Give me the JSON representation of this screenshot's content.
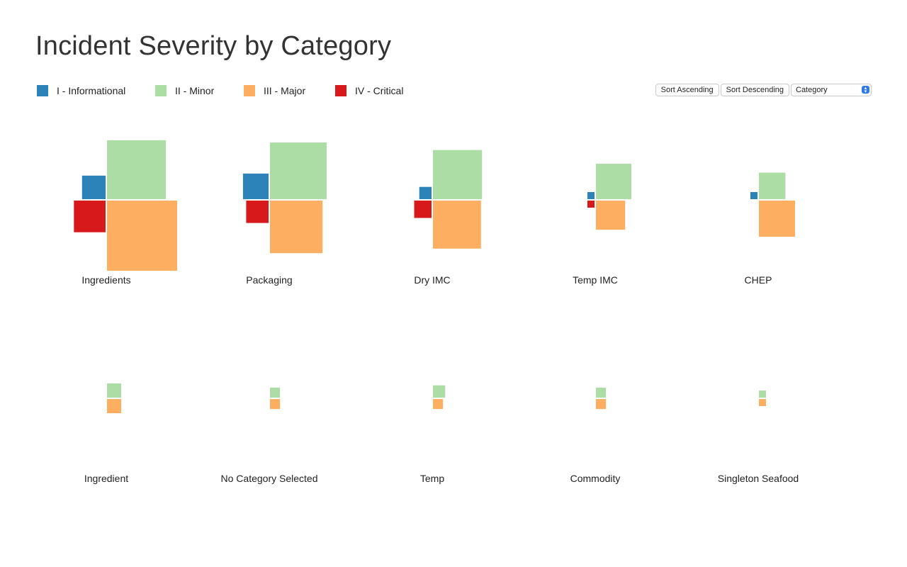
{
  "chart_data": {
    "type": "bar",
    "title": "Incident Severity by Category",
    "series": [
      {
        "name": "I - Informational",
        "color": "#2b83ba"
      },
      {
        "name": "II - Minor",
        "color": "#abdda4"
      },
      {
        "name": "III - Major",
        "color": "#fdae61"
      },
      {
        "name": "IV - Critical",
        "color": "#d7191c"
      }
    ],
    "categories": [
      {
        "name": "Ingredients",
        "values": [
          11,
          69,
          98,
          20
        ]
      },
      {
        "name": "Packaging",
        "values": [
          13,
          64,
          55,
          10
        ]
      },
      {
        "name": "Dry IMC",
        "values": [
          3,
          48,
          46,
          6
        ]
      },
      {
        "name": "Temp IMC",
        "values": [
          1,
          25,
          17,
          1
        ]
      },
      {
        "name": "CHEP",
        "values": [
          1,
          14,
          26,
          0
        ]
      },
      {
        "name": "Ingredient",
        "values": [
          0,
          4,
          4,
          0
        ]
      },
      {
        "name": "No Category Selected",
        "values": [
          0,
          2,
          2,
          0
        ]
      },
      {
        "name": "Temp",
        "values": [
          0,
          3,
          2,
          0
        ]
      },
      {
        "name": "Commodity",
        "values": [
          0,
          2,
          2,
          0
        ]
      },
      {
        "name": "Singleton Seafood",
        "values": [
          0,
          1,
          1,
          0
        ]
      }
    ],
    "legend_position": "top-left",
    "grid": false
  },
  "controls": {
    "sort_ascending_label": "Sort Ascending",
    "sort_descending_label": "Sort Descending",
    "sort_field_value": "Category"
  }
}
